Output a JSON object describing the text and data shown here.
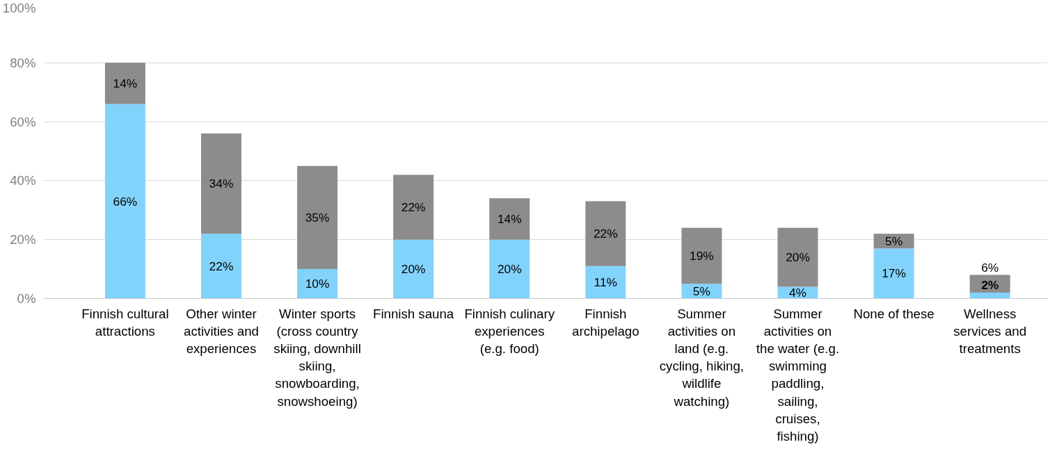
{
  "chart_data": {
    "type": "bar",
    "stacked": true,
    "grid": "y",
    "categories": [
      "Finnish cultural attractions",
      "Other winter activities and experiences",
      "Winter sports (cross country skiing, downhill skiing, snowboarding, snowshoeing)",
      "Finnish sauna",
      "Finnish culinary experiences (e.g. food)",
      "Finnish archipelago",
      "Summer activities on land (e.g. cycling, hiking, wildlife watching)",
      "Summer activities on the water (e.g. swimming paddling, sailing, cruises, fishing)",
      "None of these",
      "Wellness services and treatments"
    ],
    "series": [
      {
        "color": "#82d3fb",
        "values": [
          66,
          22,
          10,
          20,
          20,
          11,
          5,
          4,
          17,
          2
        ],
        "value_labels": [
          "66%",
          "22%",
          "10%",
          "20%",
          "20%",
          "11%",
          "5%",
          "4%",
          "17%",
          "2%"
        ]
      },
      {
        "color": "#8c8c8c",
        "values": [
          14,
          34,
          35,
          22,
          14,
          22,
          19,
          20,
          5,
          6
        ],
        "value_labels": [
          "14%",
          "34%",
          "35%",
          "22%",
          "14%",
          "22%",
          "19%",
          "20%",
          "5%",
          "6%"
        ]
      }
    ],
    "ylim": [
      0,
      100
    ],
    "yticks": [
      {
        "value": 0,
        "label": "0%"
      },
      {
        "value": 20,
        "label": "20%"
      },
      {
        "value": 40,
        "label": "40%"
      },
      {
        "value": 60,
        "label": "60%"
      },
      {
        "value": 80,
        "label": "80%"
      },
      {
        "value": 100,
        "label": "100%"
      }
    ]
  }
}
